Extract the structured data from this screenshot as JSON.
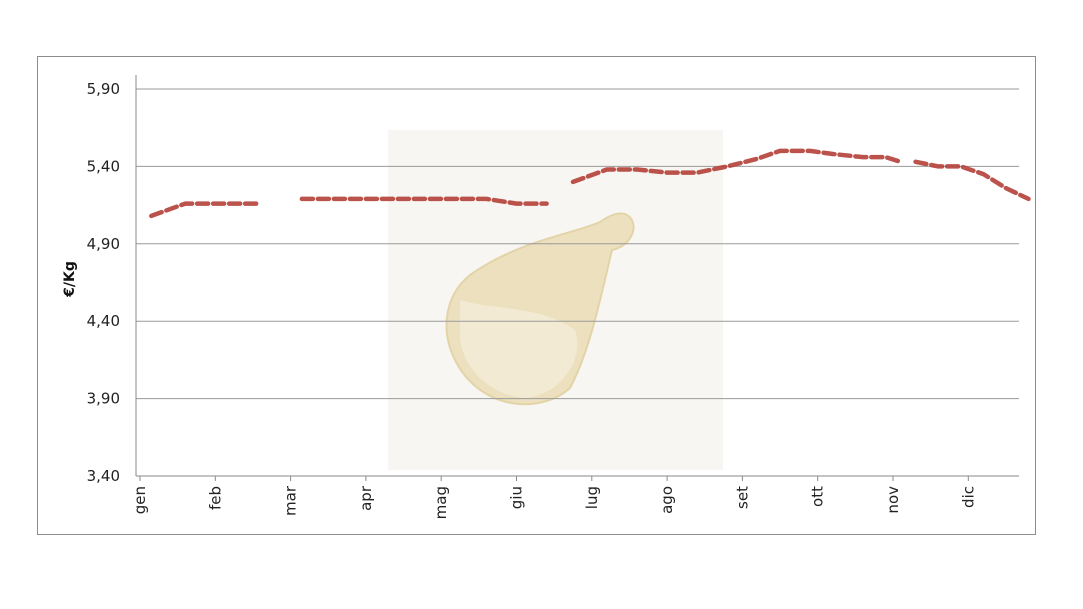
{
  "chart_data": {
    "type": "line",
    "title": "",
    "xlabel": "",
    "ylabel": "€/Kg",
    "ylim": [
      3.4,
      5.9
    ],
    "y_ticks": [
      "3,40",
      "3,90",
      "4,40",
      "4,90",
      "5,40",
      "5,90"
    ],
    "y_tick_values": [
      3.4,
      3.9,
      4.4,
      4.9,
      5.4,
      5.9
    ],
    "categories": [
      "gen",
      "feb",
      "mar",
      "apr",
      "mag",
      "giu",
      "lug",
      "ago",
      "set",
      "ott",
      "nov",
      "dic"
    ],
    "grid": true,
    "legend": "none",
    "series": [
      {
        "color": "#b5433c",
        "style": "dashed",
        "segments": [
          [
            [
              0.15,
              5.08
            ],
            [
              0.6,
              5.16
            ],
            [
              1.0,
              5.16
            ],
            [
              1.6,
              5.16
            ]
          ],
          [
            [
              2.15,
              5.19
            ],
            [
              3.0,
              5.19
            ],
            [
              4.0,
              5.19
            ],
            [
              4.6,
              5.19
            ],
            [
              5.0,
              5.16
            ],
            [
              5.4,
              5.16
            ]
          ],
          [
            [
              5.75,
              5.3
            ],
            [
              6.2,
              5.38
            ],
            [
              6.6,
              5.38
            ],
            [
              7.0,
              5.36
            ],
            [
              7.4,
              5.36
            ],
            [
              7.8,
              5.4
            ],
            [
              8.2,
              5.45
            ],
            [
              8.5,
              5.5
            ],
            [
              8.9,
              5.5
            ],
            [
              9.2,
              5.48
            ],
            [
              9.6,
              5.46
            ],
            [
              9.9,
              5.46
            ],
            [
              10.1,
              5.43
            ]
          ],
          [
            [
              10.3,
              5.43
            ],
            [
              10.6,
              5.4
            ],
            [
              10.9,
              5.4
            ],
            [
              11.2,
              5.35
            ],
            [
              11.5,
              5.26
            ],
            [
              11.8,
              5.19
            ]
          ]
        ]
      }
    ],
    "background_image": "prosciutto-ham-watermark"
  }
}
